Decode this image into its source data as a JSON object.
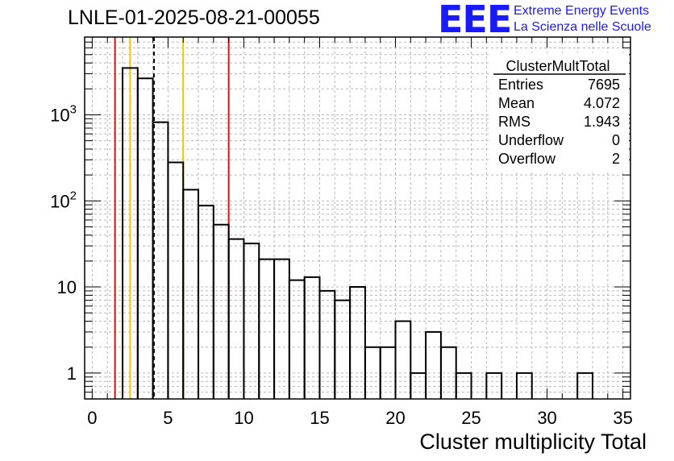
{
  "title": "LNLE-01-2025-08-21-00055",
  "logo": {
    "mark": "EEE",
    "line1": "Extreme Energy Events",
    "line2": "La Scienza nelle Scuole",
    "color": "#1a1aff"
  },
  "stats": {
    "name": "ClusterMultTotal",
    "rows": [
      {
        "label": "Entries",
        "value": "7695"
      },
      {
        "label": "Mean",
        "value": "4.072"
      },
      {
        "label": "RMS",
        "value": "1.943"
      },
      {
        "label": "Underflow",
        "value": "0"
      },
      {
        "label": "Overflow",
        "value": "2"
      }
    ]
  },
  "chart_data": {
    "type": "histogram",
    "xlabel": "Cluster multiplicity Total",
    "ylabel": "",
    "xlim": [
      -0.5,
      35.5
    ],
    "ylim": [
      0.5,
      8000
    ],
    "yscale": "log",
    "grid": true,
    "bin_width": 1,
    "bins": [
      {
        "x": 2.5,
        "value": 3500
      },
      {
        "x": 3.5,
        "value": 2650
      },
      {
        "x": 4.5,
        "value": 820
      },
      {
        "x": 5.5,
        "value": 280
      },
      {
        "x": 6.5,
        "value": 135
      },
      {
        "x": 7.5,
        "value": 88
      },
      {
        "x": 8.5,
        "value": 53
      },
      {
        "x": 9.5,
        "value": 36
      },
      {
        "x": 10.5,
        "value": 32
      },
      {
        "x": 11.5,
        "value": 21
      },
      {
        "x": 12.5,
        "value": 21
      },
      {
        "x": 13.5,
        "value": 12
      },
      {
        "x": 14.5,
        "value": 13
      },
      {
        "x": 15.5,
        "value": 9
      },
      {
        "x": 16.5,
        "value": 7
      },
      {
        "x": 17.5,
        "value": 10
      },
      {
        "x": 18.5,
        "value": 2
      },
      {
        "x": 19.5,
        "value": 2
      },
      {
        "x": 20.5,
        "value": 4
      },
      {
        "x": 21.5,
        "value": 1
      },
      {
        "x": 22.5,
        "value": 3
      },
      {
        "x": 23.5,
        "value": 2
      },
      {
        "x": 24.5,
        "value": 1
      },
      {
        "x": 26.5,
        "value": 1
      },
      {
        "x": 28.5,
        "value": 1
      },
      {
        "x": 32.5,
        "value": 1
      }
    ],
    "x_ticks": [
      0,
      5,
      10,
      15,
      20,
      25,
      30,
      35
    ],
    "y_ticks": [
      {
        "value": 1,
        "label": "1"
      },
      {
        "value": 10,
        "label": "10"
      },
      {
        "value": 100,
        "label": "10",
        "exp": "2"
      },
      {
        "value": 1000,
        "label": "10",
        "exp": "3"
      }
    ],
    "vertical_lines": [
      {
        "x": 1.5,
        "color": "#e01010",
        "style": "solid"
      },
      {
        "x": 2.5,
        "color": "#f5c400",
        "style": "solid"
      },
      {
        "x": 4.07,
        "color": "#000000",
        "style": "dashed"
      },
      {
        "x": 6.0,
        "color": "#f5c400",
        "style": "solid"
      },
      {
        "x": 9.0,
        "color": "#e01010",
        "style": "solid"
      }
    ]
  }
}
